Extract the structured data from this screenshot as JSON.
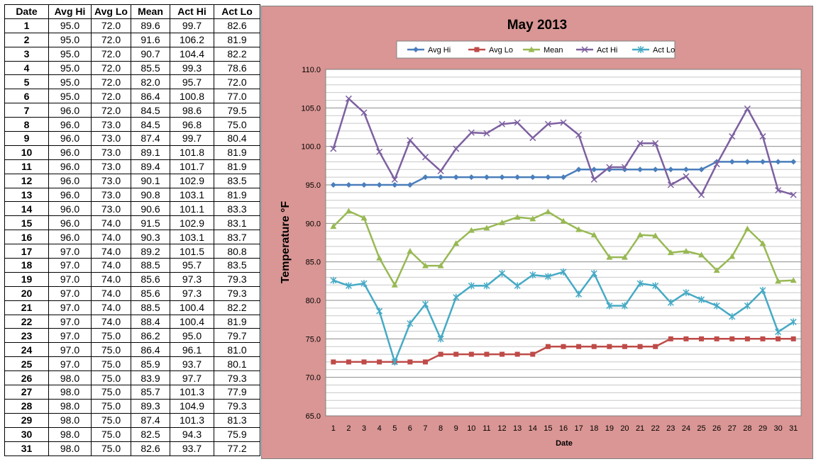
{
  "table": {
    "headers": [
      "Date",
      "Avg Hi",
      "Avg Lo",
      "Mean",
      "Act Hi",
      "Act Lo"
    ],
    "rows": [
      [
        "1",
        "95.0",
        "72.0",
        "89.6",
        "99.7",
        "82.6"
      ],
      [
        "2",
        "95.0",
        "72.0",
        "91.6",
        "106.2",
        "81.9"
      ],
      [
        "3",
        "95.0",
        "72.0",
        "90.7",
        "104.4",
        "82.2"
      ],
      [
        "4",
        "95.0",
        "72.0",
        "85.5",
        "99.3",
        "78.6"
      ],
      [
        "5",
        "95.0",
        "72.0",
        "82.0",
        "95.7",
        "72.0"
      ],
      [
        "6",
        "95.0",
        "72.0",
        "86.4",
        "100.8",
        "77.0"
      ],
      [
        "7",
        "96.0",
        "72.0",
        "84.5",
        "98.6",
        "79.5"
      ],
      [
        "8",
        "96.0",
        "73.0",
        "84.5",
        "96.8",
        "75.0"
      ],
      [
        "9",
        "96.0",
        "73.0",
        "87.4",
        "99.7",
        "80.4"
      ],
      [
        "10",
        "96.0",
        "73.0",
        "89.1",
        "101.8",
        "81.9"
      ],
      [
        "11",
        "96.0",
        "73.0",
        "89.4",
        "101.7",
        "81.9"
      ],
      [
        "12",
        "96.0",
        "73.0",
        "90.1",
        "102.9",
        "83.5"
      ],
      [
        "13",
        "96.0",
        "73.0",
        "90.8",
        "103.1",
        "81.9"
      ],
      [
        "14",
        "96.0",
        "73.0",
        "90.6",
        "101.1",
        "83.3"
      ],
      [
        "15",
        "96.0",
        "74.0",
        "91.5",
        "102.9",
        "83.1"
      ],
      [
        "16",
        "96.0",
        "74.0",
        "90.3",
        "103.1",
        "83.7"
      ],
      [
        "17",
        "97.0",
        "74.0",
        "89.2",
        "101.5",
        "80.8"
      ],
      [
        "18",
        "97.0",
        "74.0",
        "88.5",
        "95.7",
        "83.5"
      ],
      [
        "19",
        "97.0",
        "74.0",
        "85.6",
        "97.3",
        "79.3"
      ],
      [
        "20",
        "97.0",
        "74.0",
        "85.6",
        "97.3",
        "79.3"
      ],
      [
        "21",
        "97.0",
        "74.0",
        "88.5",
        "100.4",
        "82.2"
      ],
      [
        "22",
        "97.0",
        "74.0",
        "88.4",
        "100.4",
        "81.9"
      ],
      [
        "23",
        "97.0",
        "75.0",
        "86.2",
        "95.0",
        "79.7"
      ],
      [
        "24",
        "97.0",
        "75.0",
        "86.4",
        "96.1",
        "81.0"
      ],
      [
        "25",
        "97.0",
        "75.0",
        "85.9",
        "93.7",
        "80.1"
      ],
      [
        "26",
        "98.0",
        "75.0",
        "83.9",
        "97.7",
        "79.3"
      ],
      [
        "27",
        "98.0",
        "75.0",
        "85.7",
        "101.3",
        "77.9"
      ],
      [
        "28",
        "98.0",
        "75.0",
        "89.3",
        "104.9",
        "79.3"
      ],
      [
        "29",
        "98.0",
        "75.0",
        "87.4",
        "101.3",
        "81.3"
      ],
      [
        "30",
        "98.0",
        "75.0",
        "82.5",
        "94.3",
        "75.9"
      ],
      [
        "31",
        "98.0",
        "75.0",
        "82.6",
        "93.7",
        "77.2"
      ]
    ]
  },
  "colors": {
    "panel_background": "#d99694",
    "plot_background": "#ffffff",
    "gridline": "#a6a6a6"
  },
  "chart_data": {
    "type": "line",
    "title": "May 2013",
    "xlabel": "Date",
    "ylabel": "Temperature °F",
    "x": [
      1,
      2,
      3,
      4,
      5,
      6,
      7,
      8,
      9,
      10,
      11,
      12,
      13,
      14,
      15,
      16,
      17,
      18,
      19,
      20,
      21,
      22,
      23,
      24,
      25,
      26,
      27,
      28,
      29,
      30,
      31
    ],
    "ylim": [
      65,
      110
    ],
    "yticks": [
      "65.0",
      "70.0",
      "75.0",
      "80.0",
      "85.0",
      "90.0",
      "95.0",
      "100.0",
      "105.0",
      "110.0"
    ],
    "ytick_values": [
      65,
      70,
      75,
      80,
      85,
      90,
      95,
      100,
      105,
      110
    ],
    "grid": true,
    "legend_position": "top",
    "series": [
      {
        "name": "Avg Hi",
        "color": "#4a7ebb",
        "marker": "diamond",
        "values": [
          95,
          95,
          95,
          95,
          95,
          95,
          96,
          96,
          96,
          96,
          96,
          96,
          96,
          96,
          96,
          96,
          97,
          97,
          97,
          97,
          97,
          97,
          97,
          97,
          97,
          98,
          98,
          98,
          98,
          98,
          98
        ]
      },
      {
        "name": "Avg Lo",
        "color": "#be4b48",
        "marker": "square",
        "values": [
          72,
          72,
          72,
          72,
          72,
          72,
          72,
          73,
          73,
          73,
          73,
          73,
          73,
          73,
          74,
          74,
          74,
          74,
          74,
          74,
          74,
          74,
          75,
          75,
          75,
          75,
          75,
          75,
          75,
          75,
          75
        ]
      },
      {
        "name": "Mean",
        "color": "#98b954",
        "marker": "triangle",
        "values": [
          89.6,
          91.6,
          90.7,
          85.5,
          82.0,
          86.4,
          84.5,
          84.5,
          87.4,
          89.1,
          89.4,
          90.1,
          90.8,
          90.6,
          91.5,
          90.3,
          89.2,
          88.5,
          85.6,
          85.6,
          88.5,
          88.4,
          86.2,
          86.4,
          85.9,
          83.9,
          85.7,
          89.3,
          87.4,
          82.5,
          82.6
        ]
      },
      {
        "name": "Act Hi",
        "color": "#7d60a0",
        "marker": "x",
        "values": [
          99.7,
          106.2,
          104.4,
          99.3,
          95.7,
          100.8,
          98.6,
          96.8,
          99.7,
          101.8,
          101.7,
          102.9,
          103.1,
          101.1,
          102.9,
          103.1,
          101.5,
          95.7,
          97.3,
          97.3,
          100.4,
          100.4,
          95.0,
          96.1,
          93.7,
          97.7,
          101.3,
          104.9,
          101.3,
          94.3,
          93.7
        ]
      },
      {
        "name": "Act Lo",
        "color": "#46aac5",
        "marker": "star",
        "values": [
          82.6,
          81.9,
          82.2,
          78.6,
          72.0,
          77.0,
          79.5,
          75.0,
          80.4,
          81.9,
          81.9,
          83.5,
          81.9,
          83.3,
          83.1,
          83.7,
          80.8,
          83.5,
          79.3,
          79.3,
          82.2,
          81.9,
          79.7,
          81.0,
          80.1,
          79.3,
          77.9,
          79.3,
          81.3,
          75.9,
          77.2
        ]
      }
    ]
  }
}
